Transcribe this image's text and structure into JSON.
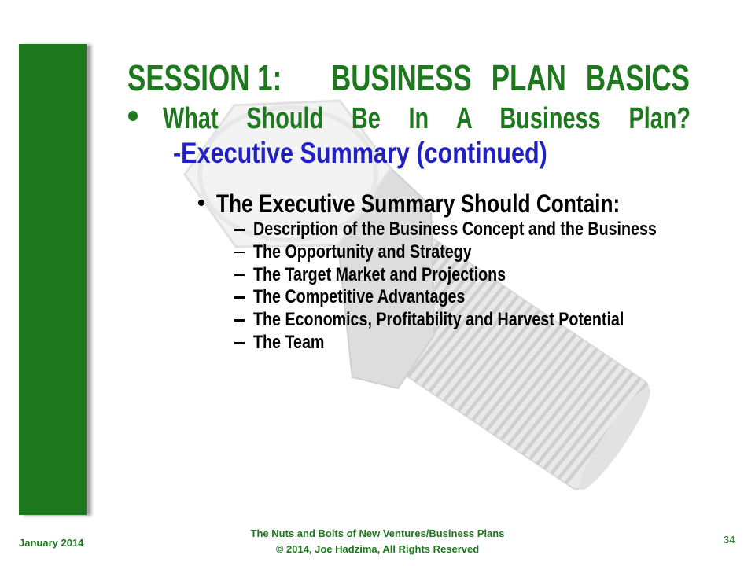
{
  "slide": {
    "title": {
      "session": "SESSION 1:",
      "topic": "BUSINESS PLAN BASICS"
    },
    "heading": "What Should Be In A Business Plan?",
    "subheading": "-Executive Summary (continued)",
    "section": {
      "lead": "The Executive Summary Should Contain:",
      "points": [
        "Description of the Business Concept and the Business",
        "The Opportunity and Strategy",
        "The Target Market and Projections",
        "The Competitive Advantages",
        "The Economics, Profitability and Harvest Potential",
        "The Team"
      ]
    }
  },
  "footer": {
    "date": "January 2014",
    "course_title": "The Nuts and Bolts of New Ventures/Business Plans",
    "copyright": "© 2014, Joe Hadzima, All Rights Reserved",
    "page_number": "34"
  },
  "colors": {
    "accent_green": "#1e781e",
    "subheading_blue": "#2020c4",
    "body_text": "#000000"
  },
  "icons": {
    "watermark": "bolt-icon",
    "level1_bullet": "bullet-icon",
    "level2_bullet": "bullet-icon",
    "level3_marker": "dash-icon"
  }
}
